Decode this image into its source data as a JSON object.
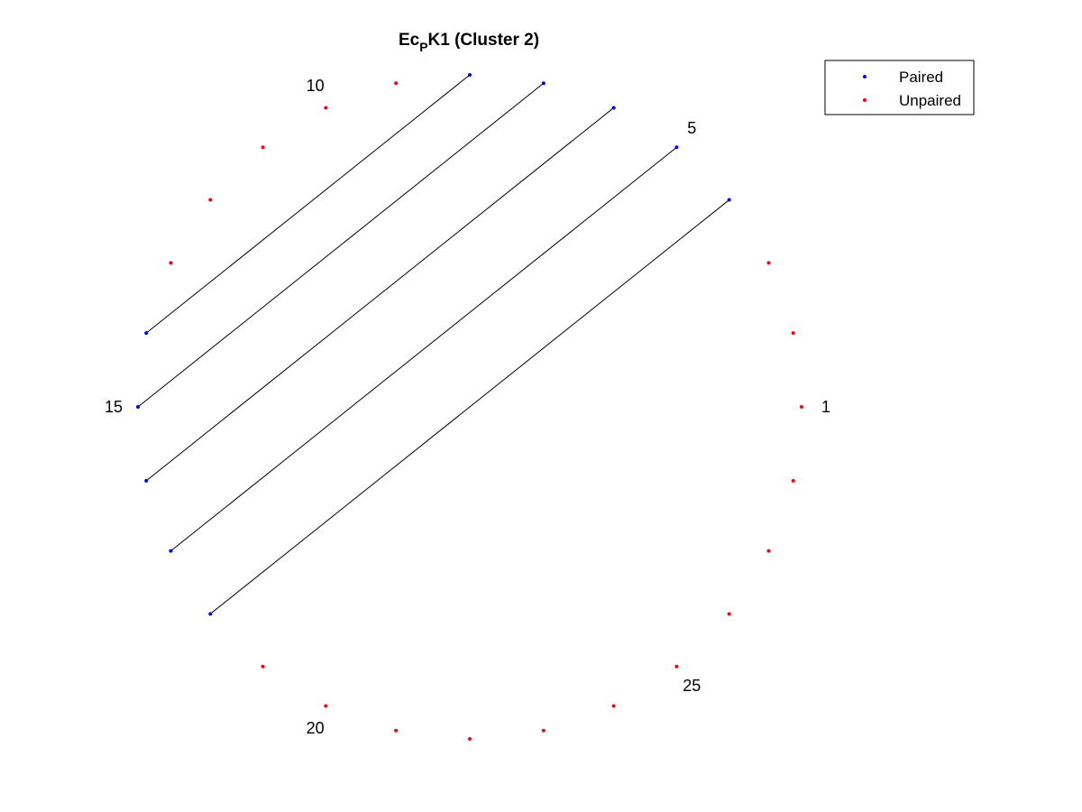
{
  "chart_data": {
    "type": "scatter",
    "title": {
      "main": "Ec",
      "subscript": "P",
      "rest": "K1 (Cluster 2)"
    },
    "layout": "circular arc diagram",
    "n_positions": 28,
    "position_labels": [
      1,
      5,
      10,
      15,
      20,
      25
    ],
    "series": [
      {
        "name": "Paired",
        "color": "#0000ff",
        "positions": [
          4,
          5,
          6,
          7,
          8,
          14,
          15,
          16,
          17,
          18
        ]
      },
      {
        "name": "Unpaired",
        "color": "#ff0000",
        "positions": [
          1,
          2,
          3,
          9,
          10,
          11,
          12,
          13,
          19,
          20,
          21,
          22,
          23,
          24,
          25,
          26,
          27,
          28
        ]
      }
    ],
    "pairs": [
      [
        4,
        18
      ],
      [
        5,
        17
      ],
      [
        6,
        16
      ],
      [
        7,
        15
      ],
      [
        8,
        14
      ]
    ],
    "pair_line_color": "#000000",
    "legend": {
      "position": "top-right",
      "entries": [
        "Paired",
        "Unpaired"
      ]
    },
    "grid": false,
    "axes_visible": false
  }
}
